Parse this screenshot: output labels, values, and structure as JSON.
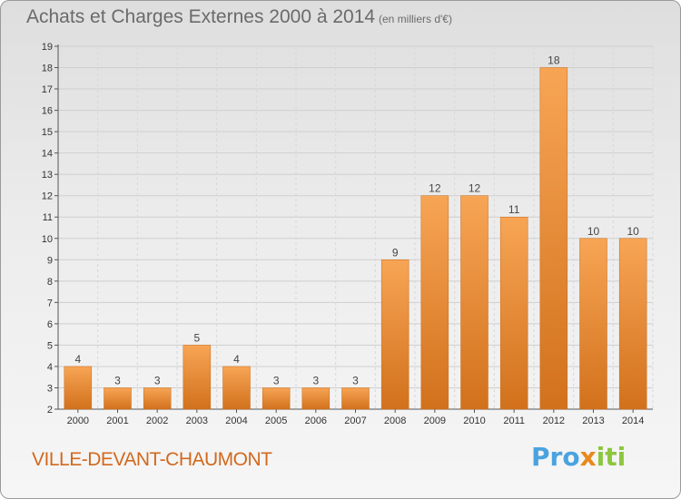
{
  "header": {
    "title": "Achats et Charges Externes 2000 à 2014",
    "unit": "(en milliers d'€)"
  },
  "footer": {
    "place": "VILLE-DEVANT-CHAUMONT",
    "logo_part1": "Pro",
    "logo_part2": "x",
    "logo_part3": "iti"
  },
  "colors": {
    "bar_top": "#f7a555",
    "bar_bottom": "#d2711c",
    "place": "#d2691e"
  },
  "chart_data": {
    "type": "bar",
    "title": "Achats et Charges Externes 2000 à 2014",
    "categories": [
      "2000",
      "2001",
      "2002",
      "2003",
      "2004",
      "2005",
      "2006",
      "2007",
      "2008",
      "2009",
      "2010",
      "2011",
      "2012",
      "2013",
      "2014"
    ],
    "values": [
      4,
      3,
      3,
      5,
      4,
      3,
      3,
      3,
      9,
      12,
      12,
      11,
      18,
      10,
      10
    ],
    "value_labels": [
      "4",
      "3",
      "3",
      "5",
      "4",
      "3",
      "3",
      "3",
      "9",
      "12",
      "12",
      "11",
      "18",
      "10",
      "10"
    ],
    "ylim": [
      2,
      19
    ],
    "yticks": [
      "2",
      "3",
      "4",
      "5",
      "6",
      "7",
      "8",
      "9",
      "10",
      "11",
      "12",
      "13",
      "14",
      "15",
      "16",
      "17",
      "18",
      "19"
    ],
    "grid": true
  }
}
